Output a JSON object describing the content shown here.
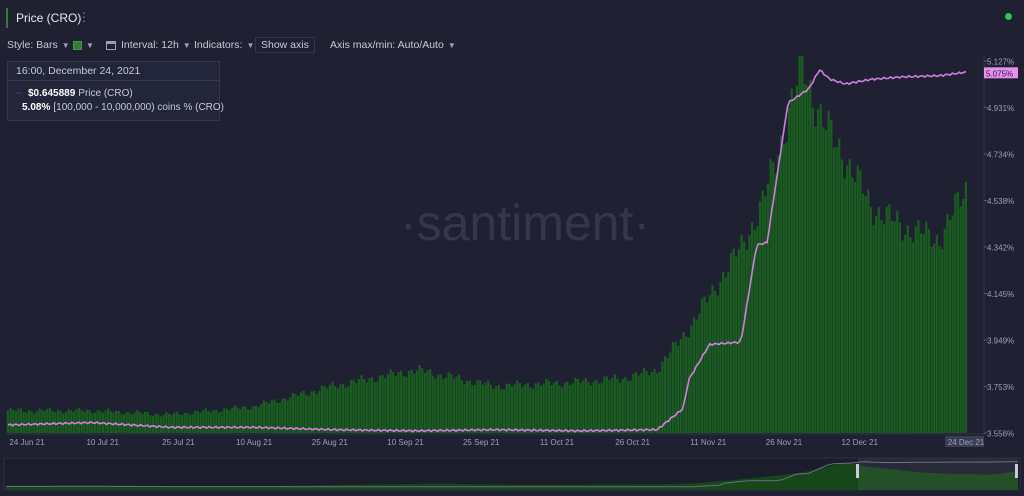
{
  "header": {
    "metric_tab_label": "Price (CRO)",
    "kebab_icon": "⋮"
  },
  "toolbar": {
    "style_label": "Style: Bars",
    "interval_label": "Interval: 12h",
    "indicators_label": "Indicators:",
    "show_axis_label": "Show axis",
    "axis_label": "Axis max/min: Auto/Auto"
  },
  "tooltip": {
    "date": "16:00, December 24, 2021",
    "price_value": "$0.645889",
    "price_label": "Price (CRO)",
    "coins_value": "5.08%",
    "coins_label": "[100,000  - 10,000,000) coins % (CRO)"
  },
  "watermark": "·santiment·",
  "colors": {
    "background": "#1f2133",
    "price_bars": "#1a5e1f",
    "coins_line": "#d17ee0",
    "axis_highlight": "#e88ff0",
    "status_dot": "#26c953"
  },
  "chart_data": {
    "type": "bar",
    "x_tick_labels": [
      "24 Jun 21",
      "10 Jul 21",
      "25 Jul 21",
      "10 Aug 21",
      "25 Aug 21",
      "10 Sep 21",
      "25 Sep 21",
      "11 Oct 21",
      "26 Oct 21",
      "11 Nov 21",
      "26 Nov 21",
      "12 Dec 21",
      "24 Dec 21"
    ],
    "right_axis_ticks": [
      "5.127%",
      "4.931%",
      "4.734%",
      "4.538%",
      "4.342%",
      "4.145%",
      "3.949%",
      "3.753%",
      "3.556%"
    ],
    "right_axis_highlight": "5.075%",
    "right_axis_range": [
      3.556,
      5.127
    ],
    "price_range": [
      0.045,
      0.97
    ],
    "series": [
      {
        "name": "Price (CRO)",
        "style": "bars",
        "x": [
          "2021-06-24",
          "2021-07-10",
          "2021-07-25",
          "2021-08-10",
          "2021-08-25",
          "2021-09-10",
          "2021-09-25",
          "2021-10-11",
          "2021-10-20",
          "2021-10-26",
          "2021-11-01",
          "2021-11-06",
          "2021-11-11",
          "2021-11-15",
          "2021-11-20",
          "2021-11-23",
          "2021-11-24",
          "2021-11-27",
          "2021-12-01",
          "2021-12-06",
          "2021-12-12",
          "2021-12-19",
          "2021-12-24"
        ],
        "values": [
          0.1,
          0.1,
          0.09,
          0.11,
          0.16,
          0.2,
          0.16,
          0.17,
          0.18,
          0.2,
          0.3,
          0.4,
          0.5,
          0.6,
          0.82,
          0.95,
          0.9,
          0.8,
          0.72,
          0.6,
          0.55,
          0.52,
          0.645889
        ]
      },
      {
        "name": "[100,000  - 10,000,000) coins % (CRO)",
        "style": "line",
        "x": [
          "2021-06-24",
          "2021-07-10",
          "2021-07-25",
          "2021-08-10",
          "2021-08-25",
          "2021-09-10",
          "2021-09-25",
          "2021-10-11",
          "2021-10-26",
          "2021-10-31",
          "2021-11-01",
          "2021-11-05",
          "2021-11-11",
          "2021-11-14",
          "2021-11-16",
          "2021-11-20",
          "2021-11-24",
          "2021-11-26",
          "2021-11-28",
          "2021-12-01",
          "2021-12-06",
          "2021-12-12",
          "2021-12-19",
          "2021-12-24"
        ],
        "values": [
          3.59,
          3.6,
          3.58,
          3.58,
          3.57,
          3.565,
          3.57,
          3.565,
          3.57,
          3.66,
          3.78,
          3.93,
          3.94,
          4.35,
          4.36,
          4.95,
          5.01,
          5.09,
          5.05,
          5.03,
          5.05,
          5.06,
          5.065,
          5.08
        ]
      }
    ]
  }
}
